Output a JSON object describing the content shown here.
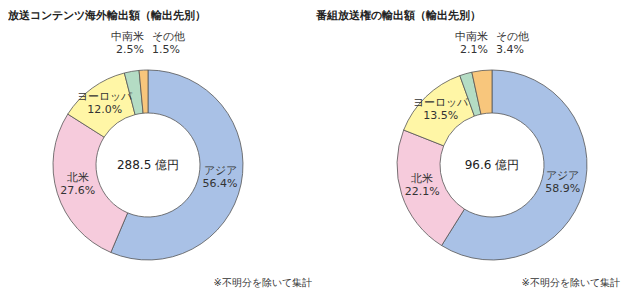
{
  "chart_data": [
    {
      "type": "pie",
      "title": "放送コンテンツ海外輸出額（輸出先別）",
      "center_label": "288.5 億円",
      "note": "※不明分を除いて集計",
      "categories": [
        "アジア",
        "北米",
        "ヨーロッパ",
        "中南米",
        "その他"
      ],
      "values": [
        56.4,
        27.6,
        12.0,
        2.5,
        1.5
      ],
      "value_labels": [
        "56.4%",
        "27.6%",
        "12.0%",
        "2.5%",
        "1.5%"
      ],
      "colors": [
        "#a9c1e6",
        "#f6cbdc",
        "#fff6a6",
        "#b4dcc4",
        "#f8c67c"
      ],
      "data_labels": true
    },
    {
      "type": "pie",
      "title": "番組放送権の輸出額（輸出先別）",
      "center_label": "96.6 億円",
      "note": "※不明分を除いて集計",
      "categories": [
        "アジア",
        "北米",
        "ヨーロッパ",
        "中南米",
        "その他"
      ],
      "values": [
        58.9,
        22.1,
        13.5,
        2.1,
        3.4
      ],
      "value_labels": [
        "58.9%",
        "22.1%",
        "13.5%",
        "2.1%",
        "3.4%"
      ],
      "colors": [
        "#a9c1e6",
        "#f6cbdc",
        "#fff6a6",
        "#b4dcc4",
        "#f8c67c"
      ],
      "data_labels": true
    }
  ]
}
